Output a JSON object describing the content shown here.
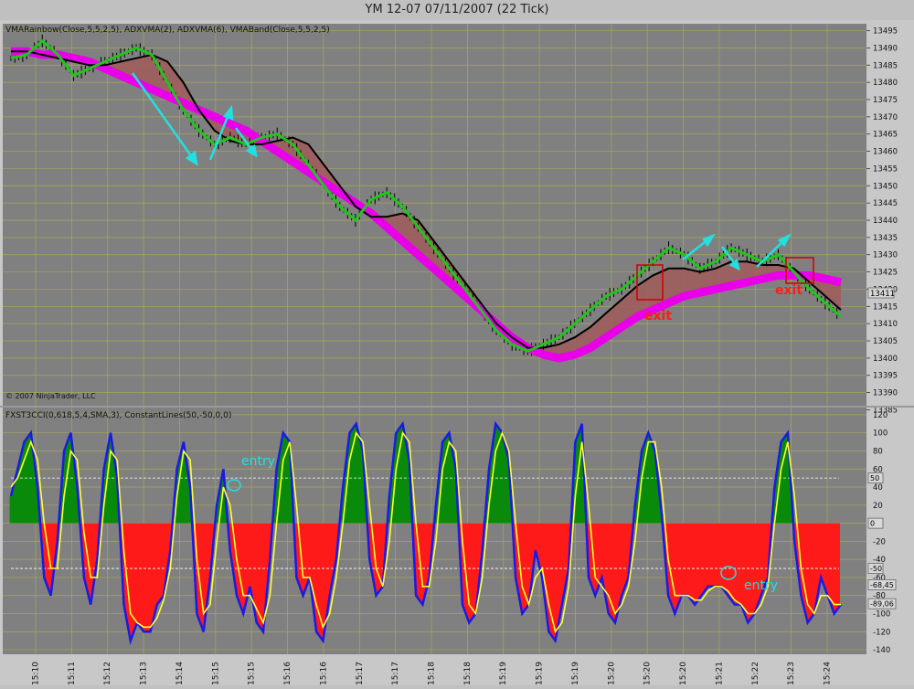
{
  "window": {
    "title": "YM 12-07  07/11/2007  (22 Tick)"
  },
  "price_panel": {
    "indicator_label": "VMARainbow(Close,5,5,2,5),  ADXVMA(2),  ADXVMA(6),  VMABand(Close,5,5,2,5)",
    "copyright": "© 2007 NinjaTrader, LLC",
    "last_price_badge": "13411",
    "annotations": {
      "exit1": "exit",
      "exit2": "exit"
    }
  },
  "osc_panel": {
    "indicator_label": "FXST3CCI(0,618,5,4,SMA,3), ConstantLines(50,-50,0,0)",
    "annotations": {
      "entry1": "entry",
      "entry2": "entry"
    },
    "right_badges": [
      "50",
      "0",
      "-50",
      "-68,45",
      "-89,06"
    ]
  },
  "colors": {
    "background": "#c0c0c0",
    "panel_bg": "#808080",
    "grid": "#a8a858",
    "price_bars": "#000000",
    "adxvma_fast": "#22c41e",
    "adxvma_slow": "#000000",
    "rainbow": "#e800e8",
    "band_fill": "#a05a5a",
    "arrows": "#22e0e0",
    "exit_text": "#ff1a1a",
    "osc_up": "#0a8a0a",
    "osc_down": "#ff1a1a",
    "cci_line": "#1a1ae6",
    "signal_line": "#ffff33"
  },
  "chart_data": [
    {
      "type": "line",
      "title": "",
      "x_ticks": [
        "15:10",
        "15:11",
        "15:12",
        "15:13",
        "15:14",
        "15:15",
        "15:15",
        "15:16",
        "15:16",
        "15:17",
        "15:17",
        "15:18",
        "15:18",
        "15:19",
        "15:19",
        "15:19",
        "15:20",
        "15:20",
        "15:20",
        "15:21",
        "15:22",
        "15:23",
        "15:24"
      ],
      "ylim": [
        13383,
        13497
      ],
      "y_ticks": [
        13385,
        13390,
        13395,
        13400,
        13405,
        13410,
        13415,
        13420,
        13425,
        13430,
        13435,
        13440,
        13445,
        13450,
        13455,
        13460,
        13465,
        13470,
        13475,
        13480,
        13485,
        13490,
        13495
      ],
      "grid": true,
      "series": [
        {
          "name": "ADXVMA(2)",
          "values": [
            13487,
            13488,
            13492,
            13488,
            13482,
            13484,
            13486,
            13488,
            13490,
            13488,
            13480,
            13472,
            13466,
            13462,
            13464,
            13462,
            13464,
            13465,
            13462,
            13456,
            13450,
            13444,
            13440,
            13446,
            13448,
            13444,
            13438,
            13432,
            13426,
            13420,
            13414,
            13408,
            13404,
            13402,
            13404,
            13406,
            13410,
            13414,
            13418,
            13420,
            13424,
            13428,
            13432,
            13430,
            13426,
            13428,
            13432,
            13430,
            13428,
            13430,
            13425,
            13420,
            13416,
            13412
          ]
        },
        {
          "name": "ADXVMA(6)",
          "values": [
            13489,
            13489,
            13488,
            13487,
            13486,
            13485,
            13485,
            13486,
            13487,
            13488,
            13486,
            13480,
            13472,
            13466,
            13463,
            13462,
            13462,
            13463,
            13464,
            13462,
            13456,
            13450,
            13444,
            13441,
            13441,
            13442,
            13440,
            13434,
            13428,
            13422,
            13416,
            13410,
            13406,
            13403,
            13403,
            13404,
            13406,
            13409,
            13413,
            13417,
            13421,
            13424,
            13426,
            13426,
            13425,
            13426,
            13428,
            13428,
            13427,
            13427,
            13426,
            13422,
            13418,
            13414
          ]
        },
        {
          "name": "VMARainbow",
          "values": [
            13489,
            13489,
            13488,
            13488,
            13487,
            13486,
            13484,
            13482,
            13480,
            13478,
            13476,
            13474,
            13472,
            13470,
            13468,
            13466,
            13463,
            13460,
            13457,
            13454,
            13451,
            13448,
            13445,
            13442,
            13438,
            13434,
            13430,
            13426,
            13422,
            13418,
            13414,
            13410,
            13406,
            13403,
            13401,
            13400,
            13401,
            13403,
            13406,
            13409,
            13412,
            13414,
            13416,
            13418,
            13419,
            13420,
            13421,
            13422,
            13423,
            13424,
            13424,
            13424,
            13423,
            13422
          ]
        }
      ]
    },
    {
      "type": "bar",
      "title": "",
      "ylim": [
        -145,
        128
      ],
      "y_ticks": [
        -140,
        -120,
        -100,
        -80,
        -60,
        -40,
        -20,
        0,
        20,
        40,
        60,
        80,
        100,
        120
      ],
      "constant_lines": [
        50,
        -50,
        0
      ],
      "series": [
        {
          "name": "FXST3CCI",
          "values": [
            30,
            60,
            90,
            100,
            40,
            -60,
            -80,
            -20,
            80,
            100,
            40,
            -60,
            -90,
            -40,
            60,
            100,
            50,
            -90,
            -130,
            -110,
            -120,
            -120,
            -90,
            -80,
            -30,
            60,
            90,
            40,
            -100,
            -120,
            -60,
            20,
            60,
            -30,
            -80,
            -100,
            -70,
            -110,
            -120,
            -40,
            60,
            100,
            90,
            -60,
            -80,
            -60,
            -120,
            -130,
            -80,
            -40,
            40,
            100,
            110,
            80,
            -40,
            -80,
            -70,
            30,
            100,
            110,
            70,
            -80,
            -90,
            -60,
            20,
            90,
            100,
            60,
            -90,
            -110,
            -100,
            -30,
            60,
            110,
            100,
            70,
            -60,
            -100,
            -90,
            -30,
            -60,
            -120,
            -130,
            -90,
            -50,
            90,
            110,
            -60,
            -80,
            -60,
            -100,
            -110,
            -80,
            -60,
            20,
            80,
            100,
            80,
            10,
            -80,
            -100,
            -80,
            -80,
            -90,
            -80,
            -70,
            -70,
            -70,
            -80,
            -90,
            -90,
            -110,
            -100,
            -80,
            -60,
            40,
            90,
            100,
            -20,
            -80,
            -110,
            -100,
            -60,
            -80,
            -100,
            -90
          ]
        },
        {
          "name": "signal",
          "values": [
            40,
            50,
            70,
            90,
            70,
            0,
            -50,
            -50,
            30,
            80,
            70,
            -10,
            -60,
            -60,
            20,
            80,
            70,
            -30,
            -100,
            -110,
            -115,
            -115,
            -105,
            -85,
            -50,
            30,
            80,
            70,
            -40,
            -100,
            -90,
            -20,
            40,
            20,
            -40,
            -80,
            -80,
            -95,
            -110,
            -80,
            0,
            70,
            90,
            20,
            -60,
            -60,
            -90,
            -115,
            -100,
            -60,
            0,
            70,
            100,
            90,
            20,
            -50,
            -70,
            -20,
            60,
            100,
            90,
            0,
            -70,
            -70,
            -20,
            60,
            90,
            80,
            -20,
            -90,
            -100,
            -60,
            20,
            80,
            100,
            80,
            0,
            -70,
            -90,
            -60,
            -50,
            -90,
            -120,
            -110,
            -70,
            30,
            90,
            20,
            -60,
            -70,
            -80,
            -100,
            -90,
            -70,
            -20,
            50,
            90,
            90,
            40,
            -40,
            -80,
            -80,
            -80,
            -85,
            -85,
            -75,
            -70,
            -70,
            -75,
            -85,
            -90,
            -100,
            -100,
            -90,
            -70,
            0,
            60,
            90,
            30,
            -50,
            -90,
            -100,
            -80,
            -80,
            -90,
            -90
          ]
        }
      ]
    }
  ]
}
